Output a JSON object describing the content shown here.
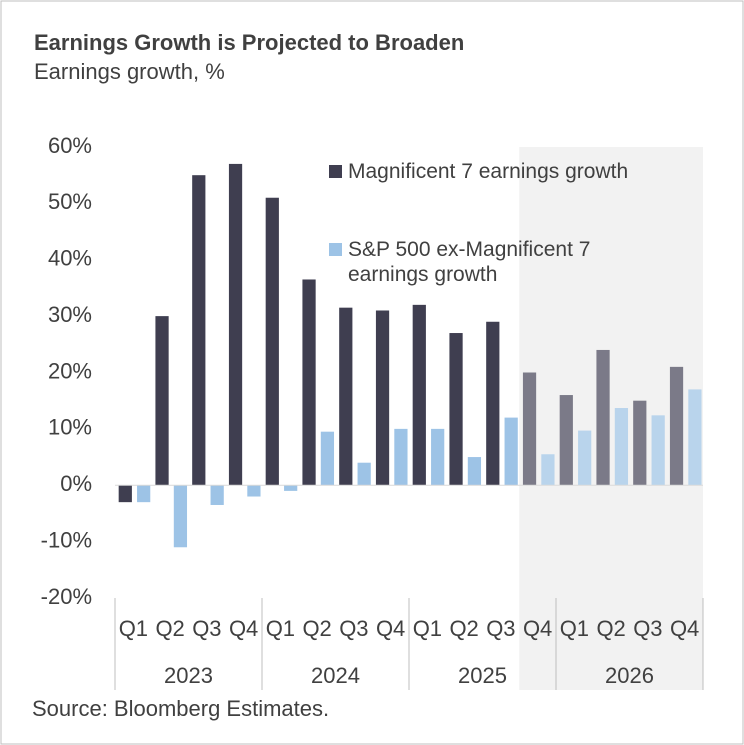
{
  "chart_data": {
    "type": "bar",
    "title": "Earnings Growth is Projected to Broaden",
    "subtitle": "Earnings growth, %",
    "source": "Source: Bloomberg Estimates.",
    "categories": [
      "Q1",
      "Q2",
      "Q3",
      "Q4",
      "Q1",
      "Q2",
      "Q3",
      "Q4",
      "Q1",
      "Q2",
      "Q3",
      "Q4",
      "Q1",
      "Q2",
      "Q3",
      "Q4"
    ],
    "year_groups": [
      "2023",
      "2024",
      "2025",
      "2026"
    ],
    "shade_from": 11,
    "series": [
      {
        "name": "Magnificent 7 earnings growth",
        "color": "#3f3e50",
        "forecast_color": "#7b7a88",
        "values": [
          -3,
          30,
          55,
          57,
          51,
          36.5,
          31.5,
          31,
          32,
          27,
          29,
          20,
          16,
          24,
          15,
          21
        ]
      },
      {
        "name": "S&P 500 ex-Magnificent 7 earnings growth",
        "color": "#9dc3e6",
        "forecast_color": "#b9d4ec",
        "values": [
          -3,
          -11,
          -3.5,
          -2,
          -1,
          9.5,
          4,
          10,
          10,
          5,
          12,
          5.5,
          9.7,
          13.7,
          12.4,
          17
        ]
      }
    ],
    "ylim": [
      -20,
      60
    ],
    "yticks": [
      {
        "value": -20,
        "label": "-20%"
      },
      {
        "value": -10,
        "label": "-10%"
      },
      {
        "value": 0,
        "label": "0%"
      },
      {
        "value": 10,
        "label": "10%"
      },
      {
        "value": 20,
        "label": "20%"
      },
      {
        "value": 30,
        "label": "30%"
      },
      {
        "value": 40,
        "label": "40%"
      },
      {
        "value": 50,
        "label": "50%"
      },
      {
        "value": 60,
        "label": "60%"
      }
    ]
  }
}
